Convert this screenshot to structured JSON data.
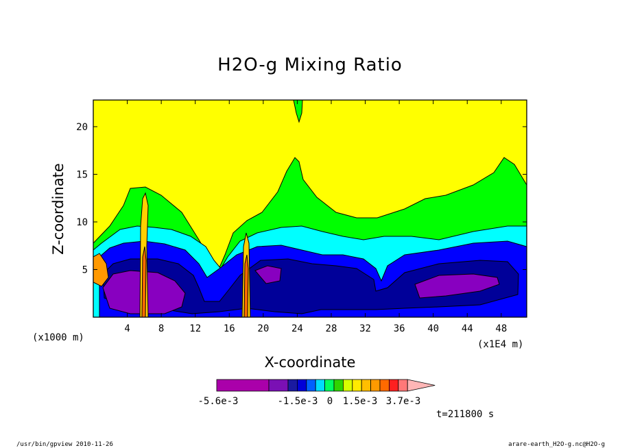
{
  "chart_data": {
    "type": "heatmap",
    "title": "H2O-g Mixing Ratio",
    "xlabel": "X-coordinate",
    "ylabel": "Z-coordinate",
    "x_unit_label": "(x1000 m)",
    "x_scale_label": "(x1E4 m)",
    "xlim": [
      0,
      51
    ],
    "ylim": [
      0,
      22.8
    ],
    "x_ticks": [
      "4",
      "8",
      "12",
      "16",
      "20",
      "24",
      "28",
      "32",
      "36",
      "40",
      "44",
      "48"
    ],
    "y_ticks": [
      "5",
      "10",
      "15",
      "20"
    ],
    "colorbar": {
      "colors": [
        "#aa00aa",
        "#7a10b4",
        "#1a1aa0",
        "#0000d8",
        "#0060ff",
        "#00dcff",
        "#00ff60",
        "#30d400",
        "#d8ff00",
        "#ffea00",
        "#ffbe00",
        "#ff9a00",
        "#ff6a00",
        "#ff2020",
        "#ff7878",
        "#ffb6b6"
      ],
      "labels": [
        "-5.6e-3",
        "-1.5e-3",
        "0",
        "1.5e-3",
        "3.7e-3"
      ]
    },
    "time_label": "t=211800 s",
    "footer_left": "/usr/bin/gpview  2010-11-26",
    "footer_right": "arare-earth_H2O-g.nc@H2O-g"
  },
  "colors": {
    "yellow": "#ffff00",
    "green": "#00ff00",
    "cyan": "#00ffff",
    "blue": "#0000ff",
    "navy": "#000099",
    "purple": "#8800c0",
    "orange": "#ff9900",
    "light_orange": "#ffd000"
  }
}
